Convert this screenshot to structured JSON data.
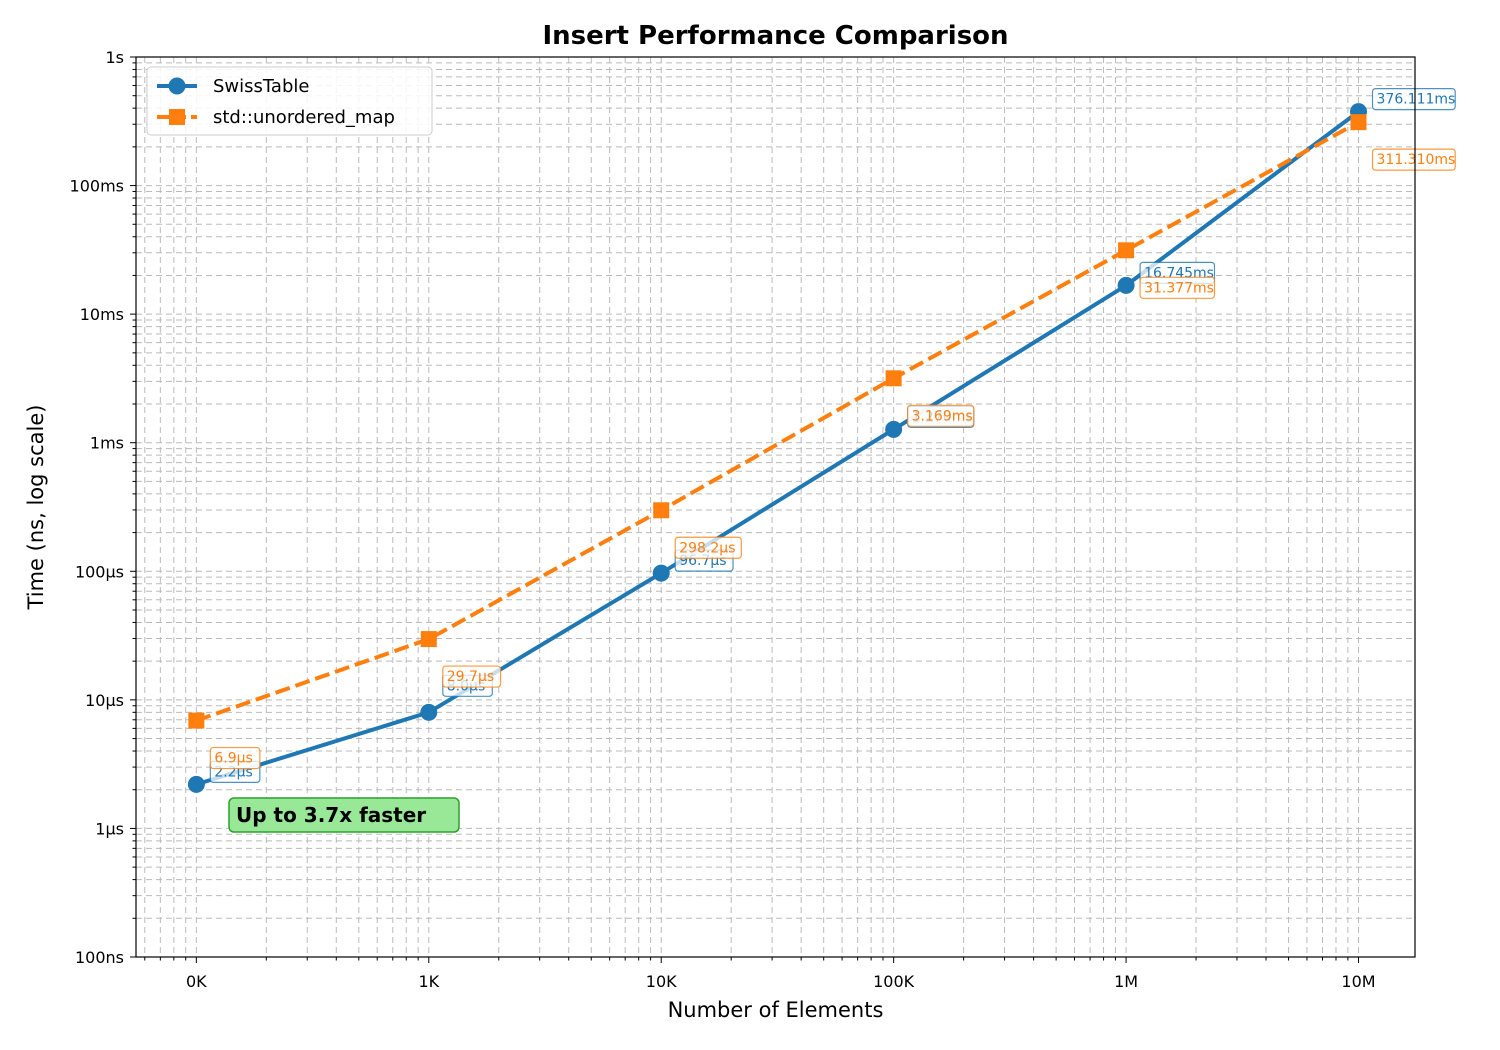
{
  "chart_data": {
    "type": "line",
    "title": "Insert Performance Comparison",
    "xlabel": "Number of Elements",
    "ylabel": "Time (ns, log scale)",
    "x_scale": "log",
    "y_scale": "log",
    "x": [
      100,
      1000,
      10000,
      100000,
      1000000,
      10000000
    ],
    "x_tick_labels": [
      "0K",
      "1K",
      "10K",
      "100K",
      "1M",
      "10M"
    ],
    "xlim": [
      55,
      17500000
    ],
    "ylim": [
      100,
      1000000000
    ],
    "y_ticks": [
      100,
      1000,
      10000,
      100000,
      1000000,
      10000000,
      100000000,
      1000000000
    ],
    "y_tick_labels": [
      "100ns",
      "1μs",
      "10μs",
      "100μs",
      "1ms",
      "10ms",
      "100ms",
      "1s"
    ],
    "grid": true,
    "legend_position": "top-left",
    "series": [
      {
        "name": "SwissTable",
        "color": "#1f77b4",
        "marker": "circle",
        "line_style": "solid",
        "values": [
          2200,
          8000,
          96700,
          1270000,
          16745000,
          376111000
        ],
        "labels": [
          "2.2μs",
          "8.0μs",
          "96.7μs",
          "1.270ms",
          "16.745ms",
          "376.111ms"
        ]
      },
      {
        "name": "std::unordered_map",
        "color": "#ff7f0e",
        "marker": "square",
        "line_style": "dashed",
        "values": [
          6900,
          29700,
          298200,
          3169000,
          31377000,
          311310000
        ],
        "labels": [
          "6.9μs",
          "29.7μs",
          "298.2μs",
          "3.169ms",
          "31.377ms",
          "311.310ms"
        ]
      }
    ],
    "annotation": {
      "text": "Up to 3.7x faster",
      "background": "#98e898",
      "border": "#2ca02c"
    }
  }
}
